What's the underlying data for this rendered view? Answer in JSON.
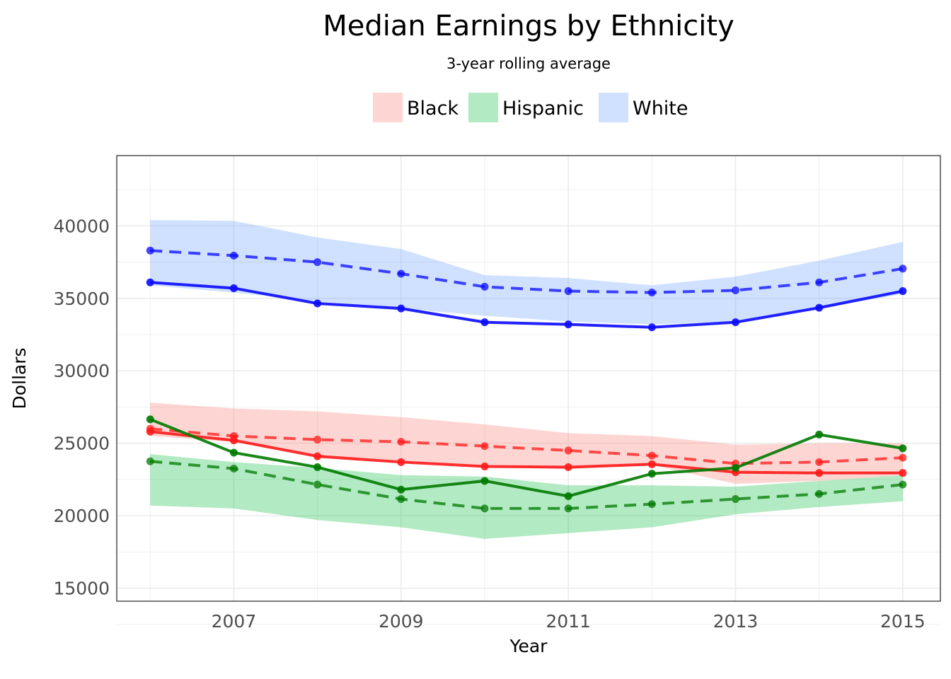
{
  "chart_data": {
    "type": "line",
    "title": "Median Earnings by Ethnicity",
    "subtitle": "3-year rolling average",
    "xlabel": "Year",
    "ylabel": "Dollars",
    "x": [
      2006,
      2007,
      2008,
      2009,
      2010,
      2011,
      2012,
      2013,
      2014,
      2015
    ],
    "x_ticks": [
      "2007",
      "2009",
      "2011",
      "2013",
      "2015"
    ],
    "y_ticks": [
      "15000",
      "20000",
      "25000",
      "30000",
      "35000",
      "40000"
    ],
    "xlim": [
      2005.6,
      2015.45
    ],
    "ylim": [
      14100,
      44850
    ],
    "legend_position": "top",
    "legend": [
      "Black",
      "Hispanic",
      "White"
    ],
    "grid": true,
    "series": [
      {
        "name": "Black",
        "color": "#ff1a1a",
        "band_color": "#f8766d",
        "solid": [
          25800,
          25200,
          24100,
          23700,
          23400,
          23350,
          23550,
          23000,
          22950,
          22950
        ],
        "dashed": [
          26000,
          25500,
          25250,
          25100,
          24800,
          24500,
          24150,
          23600,
          23700,
          24000
        ],
        "band_upper": [
          27800,
          27400,
          27200,
          26800,
          26300,
          25700,
          25500,
          24900,
          25000,
          25000
        ],
        "band_lower": [
          25500,
          25100,
          24100,
          23700,
          23400,
          23200,
          23500,
          22200,
          22400,
          22800
        ]
      },
      {
        "name": "Hispanic",
        "color": "#007a00",
        "band_color": "#00ba38",
        "solid": [
          26650,
          24350,
          23350,
          21800,
          22400,
          21350,
          22900,
          23300,
          25600,
          24650
        ],
        "dashed": [
          23750,
          23250,
          22150,
          21150,
          20500,
          20500,
          20800,
          21150,
          21500,
          22150
        ],
        "band_upper": [
          24250,
          23700,
          23300,
          22800,
          22700,
          22100,
          22100,
          22000,
          22400,
          22800
        ],
        "band_lower": [
          20700,
          20500,
          19700,
          19200,
          18400,
          18800,
          19200,
          20100,
          20600,
          21000
        ]
      },
      {
        "name": "White",
        "color": "#0a0aff",
        "band_color": "#619cff",
        "solid": [
          36100,
          35700,
          34650,
          34300,
          33350,
          33200,
          33000,
          33350,
          34350,
          35500
        ],
        "dashed": [
          38300,
          37950,
          37500,
          36700,
          35800,
          35500,
          35400,
          35550,
          36100,
          37050
        ],
        "band_upper": [
          40400,
          40350,
          39200,
          38400,
          36600,
          36400,
          35900,
          36500,
          37600,
          38900
        ],
        "band_lower": [
          35900,
          35400,
          34800,
          34300,
          33800,
          33400,
          33200,
          33400,
          34300,
          35300
        ]
      }
    ]
  }
}
